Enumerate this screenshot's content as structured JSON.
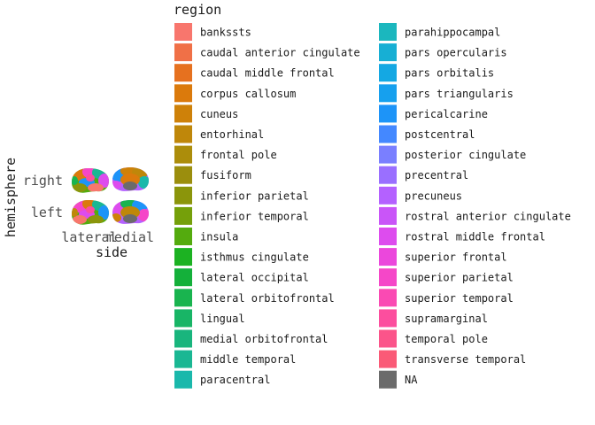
{
  "chart_data": {
    "type": "other",
    "xlabel": "side",
    "ylabel": "hemisphere",
    "x_ticks": [
      "lateral",
      "medial"
    ],
    "y_ticks": [
      "right",
      "left"
    ],
    "legend": {
      "title": "region",
      "entries": [
        {
          "label": "bankssts",
          "color": "#F8766D"
        },
        {
          "label": "caudal anterior cingulate",
          "color": "#F07047"
        },
        {
          "label": "caudal middle frontal",
          "color": "#E6711F"
        },
        {
          "label": "corpus callosum",
          "color": "#DB7A0C"
        },
        {
          "label": "cuneus",
          "color": "#CE8109"
        },
        {
          "label": "entorhinal",
          "color": "#BF870A"
        },
        {
          "label": "frontal pole",
          "color": "#AC8D0B"
        },
        {
          "label": "fusiform",
          "color": "#9B8E0D"
        },
        {
          "label": "inferior parietal",
          "color": "#8B950B"
        },
        {
          "label": "inferior temporal",
          "color": "#75A00A"
        },
        {
          "label": "insula",
          "color": "#54AB0E"
        },
        {
          "label": "isthmus cingulate",
          "color": "#1CB222"
        },
        {
          "label": "lateral occipital",
          "color": "#14B03A"
        },
        {
          "label": "lateral orbitofrontal",
          "color": "#19B44F"
        },
        {
          "label": "lingual",
          "color": "#18B566"
        },
        {
          "label": "medial orbitofrontal",
          "color": "#19B57D"
        },
        {
          "label": "middle temporal",
          "color": "#1AB793"
        },
        {
          "label": "paracentral",
          "color": "#1AB8AB"
        },
        {
          "label": "parahippocampal",
          "color": "#1BB7BE"
        },
        {
          "label": "pars opercularis",
          "color": "#17AFD4"
        },
        {
          "label": "pars orbitalis",
          "color": "#14A8E3"
        },
        {
          "label": "pars triangularis",
          "color": "#16A0EE"
        },
        {
          "label": "pericalcarine",
          "color": "#1D94F8"
        },
        {
          "label": "postcentral",
          "color": "#4488FF"
        },
        {
          "label": "posterior cingulate",
          "color": "#7A7FFF"
        },
        {
          "label": "precentral",
          "color": "#9A6FFF"
        },
        {
          "label": "precuneus",
          "color": "#B461FF"
        },
        {
          "label": "rostral anterior cingulate",
          "color": "#C955F8"
        },
        {
          "label": "rostral middle frontal",
          "color": "#DD4CEE"
        },
        {
          "label": "superior frontal",
          "color": "#EB47DC"
        },
        {
          "label": "superior parietal",
          "color": "#F547C8"
        },
        {
          "label": "superior temporal",
          "color": "#FA4AB3"
        },
        {
          "label": "supramarginal",
          "color": "#FC4E9E"
        },
        {
          "label": "temporal pole",
          "color": "#FB548A"
        },
        {
          "label": "transverse temporal",
          "color": "#FA5A77"
        },
        {
          "label": "NA",
          "color": "#6B6B6B"
        }
      ]
    }
  }
}
